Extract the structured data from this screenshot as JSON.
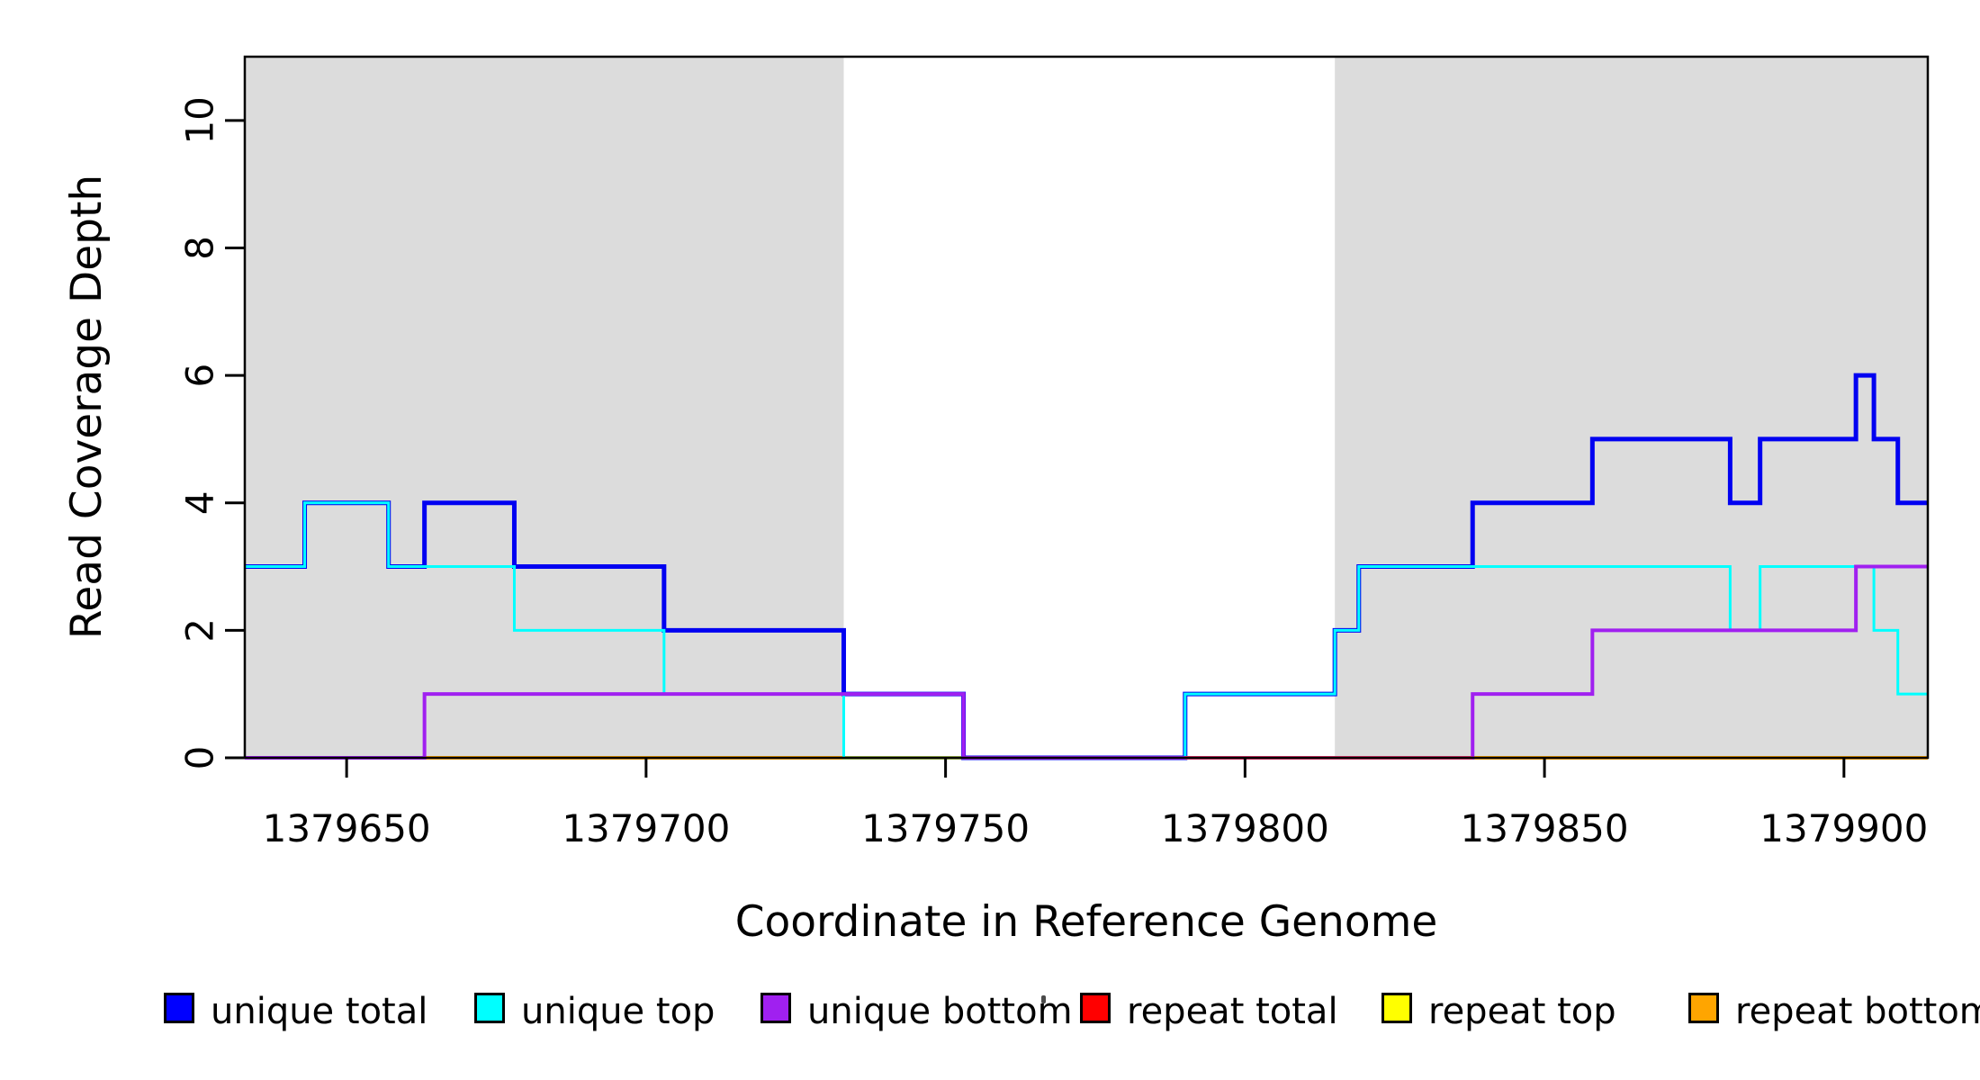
{
  "chart_data": {
    "type": "line",
    "subtype": "step-after-coverage-plot",
    "title": "",
    "xlabel": "Coordinate in Reference Genome",
    "ylabel": "Read Coverage Depth",
    "xlim": [
      1379633,
      1379914
    ],
    "ylim": [
      0,
      11
    ],
    "grid": false,
    "x_ticks": {
      "values": [
        1379650,
        1379700,
        1379750,
        1379800,
        1379850,
        1379900
      ],
      "labels": [
        "1379650",
        "1379700",
        "1379750",
        "1379800",
        "1379850",
        "1379900"
      ]
    },
    "y_ticks": {
      "values": [
        0,
        2,
        4,
        6,
        8,
        10
      ],
      "labels": [
        "0",
        "2",
        "4",
        "6",
        "8",
        "10"
      ]
    },
    "shaded_regions": {
      "color": "#DCDCDC",
      "ranges": [
        [
          1379633,
          1379733
        ],
        [
          1379815,
          1379914
        ]
      ]
    },
    "series": [
      {
        "name": "unique total",
        "color": "#0101F1",
        "stroke_width": 5,
        "step_points": [
          [
            1379633,
            3
          ],
          [
            1379643,
            4
          ],
          [
            1379657,
            3
          ],
          [
            1379663,
            4
          ],
          [
            1379678,
            3
          ],
          [
            1379703,
            2
          ],
          [
            1379733,
            1
          ],
          [
            1379753,
            0
          ],
          [
            1379790,
            1
          ],
          [
            1379815,
            2
          ],
          [
            1379819,
            3
          ],
          [
            1379838,
            4
          ],
          [
            1379858,
            5
          ],
          [
            1379881,
            4
          ],
          [
            1379886,
            5
          ],
          [
            1379902,
            6
          ],
          [
            1379905,
            5
          ],
          [
            1379909,
            4
          ]
        ]
      },
      {
        "name": "unique top",
        "color": "#00FFFF",
        "stroke_width": 3,
        "step_points": [
          [
            1379633,
            3
          ],
          [
            1379643,
            4
          ],
          [
            1379657,
            3
          ],
          [
            1379678,
            2
          ],
          [
            1379703,
            1
          ],
          [
            1379733,
            0
          ],
          [
            1379790,
            1
          ],
          [
            1379815,
            2
          ],
          [
            1379819,
            3
          ],
          [
            1379881,
            2
          ],
          [
            1379886,
            3
          ],
          [
            1379905,
            2
          ],
          [
            1379909,
            1
          ]
        ]
      },
      {
        "name": "unique bottom",
        "color": "#A020F0",
        "stroke_width": 4,
        "step_points": [
          [
            1379633,
            0
          ],
          [
            1379663,
            1
          ],
          [
            1379753,
            0
          ],
          [
            1379838,
            1
          ],
          [
            1379858,
            2
          ],
          [
            1379902,
            3
          ]
        ]
      },
      {
        "name": "repeat total",
        "color": "#FF0000",
        "stroke_width": 4,
        "step_points": [
          [
            1379633,
            0
          ]
        ]
      },
      {
        "name": "repeat top",
        "color": "#FFFF00",
        "stroke_width": 4,
        "step_points": [
          [
            1379633,
            0
          ]
        ]
      },
      {
        "name": "repeat bottom",
        "color": "#FFA500",
        "stroke_width": 4,
        "step_points": [
          [
            1379633,
            0
          ]
        ]
      }
    ],
    "zero_line_overlays": [
      {
        "color": "#E8356E",
        "from": 1379790,
        "to": 1379838,
        "note": "red repeat-total line visible on top of baseline here"
      }
    ],
    "legend_position": "bottom"
  },
  "legend": {
    "items": [
      {
        "label": "unique total",
        "color": "#0000FF"
      },
      {
        "label": "unique top",
        "color": "#00FFFF"
      },
      {
        "label": "unique bottom",
        "color": "#A020F0"
      },
      {
        "label": "repeat total",
        "color": "#FF0000"
      },
      {
        "label": "repeat top",
        "color": "#FFFF00"
      },
      {
        "label": "repeat bottom",
        "color": "#FFA500"
      }
    ]
  },
  "axes": {
    "x_title": "Coordinate in Reference Genome",
    "y_title": "Read Coverage Depth"
  }
}
